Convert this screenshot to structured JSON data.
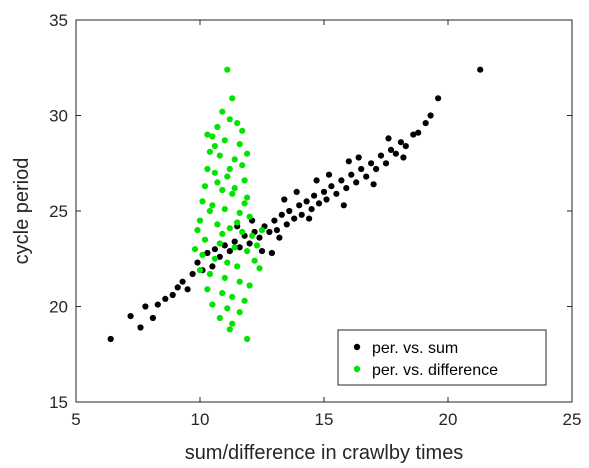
{
  "chart_data": {
    "type": "scatter",
    "xlabel": "sum/difference in crawlby times",
    "ylabel": "cycle period",
    "xlim": [
      5,
      25
    ],
    "ylim": [
      15,
      35
    ],
    "xticks": [
      "5",
      "10",
      "15",
      "20",
      "25"
    ],
    "yticks": [
      "15",
      "20",
      "25",
      "30",
      "35"
    ],
    "grid": false,
    "legend_position": "bottom-right",
    "series": [
      {
        "name": "per. vs. sum",
        "color": "#000000",
        "points": [
          [
            6.4,
            18.3
          ],
          [
            7.2,
            19.5
          ],
          [
            7.6,
            18.9
          ],
          [
            7.8,
            20.0
          ],
          [
            8.1,
            19.4
          ],
          [
            8.3,
            20.1
          ],
          [
            8.6,
            20.4
          ],
          [
            8.9,
            20.6
          ],
          [
            9.1,
            21.0
          ],
          [
            9.3,
            21.3
          ],
          [
            9.5,
            20.9
          ],
          [
            9.7,
            21.7
          ],
          [
            9.9,
            22.3
          ],
          [
            10.1,
            21.9
          ],
          [
            10.3,
            22.8
          ],
          [
            10.5,
            22.1
          ],
          [
            10.6,
            23.0
          ],
          [
            10.8,
            22.6
          ],
          [
            11.0,
            23.2
          ],
          [
            11.2,
            22.9
          ],
          [
            11.4,
            23.4
          ],
          [
            11.6,
            23.1
          ],
          [
            11.8,
            23.7
          ],
          [
            12.0,
            23.3
          ],
          [
            12.2,
            23.9
          ],
          [
            12.4,
            23.6
          ],
          [
            12.6,
            24.2
          ],
          [
            12.8,
            23.9
          ],
          [
            13.0,
            24.5
          ],
          [
            13.1,
            24.0
          ],
          [
            13.3,
            24.8
          ],
          [
            13.5,
            24.3
          ],
          [
            13.6,
            25.0
          ],
          [
            13.8,
            24.6
          ],
          [
            14.0,
            25.3
          ],
          [
            14.1,
            24.8
          ],
          [
            14.3,
            25.5
          ],
          [
            14.5,
            25.1
          ],
          [
            14.6,
            25.8
          ],
          [
            14.8,
            25.4
          ],
          [
            15.0,
            26.0
          ],
          [
            15.1,
            25.6
          ],
          [
            15.3,
            26.3
          ],
          [
            15.5,
            25.9
          ],
          [
            15.7,
            26.6
          ],
          [
            15.9,
            26.2
          ],
          [
            16.1,
            26.9
          ],
          [
            16.3,
            26.5
          ],
          [
            16.5,
            27.2
          ],
          [
            16.7,
            26.8
          ],
          [
            16.9,
            27.5
          ],
          [
            17.1,
            27.2
          ],
          [
            17.3,
            27.9
          ],
          [
            17.5,
            27.5
          ],
          [
            17.7,
            28.2
          ],
          [
            17.9,
            28.0
          ],
          [
            18.1,
            28.6
          ],
          [
            18.3,
            28.4
          ],
          [
            18.6,
            29.0
          ],
          [
            18.8,
            29.1
          ],
          [
            19.1,
            29.6
          ],
          [
            19.3,
            30.0
          ],
          [
            19.6,
            30.9
          ],
          [
            21.3,
            32.4
          ],
          [
            12.1,
            24.5
          ],
          [
            12.5,
            22.9
          ],
          [
            13.2,
            23.6
          ],
          [
            13.9,
            26.0
          ],
          [
            14.4,
            24.6
          ],
          [
            15.2,
            26.9
          ],
          [
            15.8,
            25.3
          ],
          [
            16.4,
            27.8
          ],
          [
            17.0,
            26.4
          ],
          [
            17.6,
            28.8
          ],
          [
            18.2,
            27.8
          ],
          [
            16.0,
            27.6
          ],
          [
            14.7,
            26.6
          ],
          [
            13.4,
            25.6
          ],
          [
            12.9,
            22.8
          ],
          [
            11.5,
            24.2
          ]
        ]
      },
      {
        "name": "per. vs. difference",
        "color": "#00e400",
        "points": [
          [
            11.1,
            32.4
          ],
          [
            11.3,
            30.9
          ],
          [
            10.9,
            30.2
          ],
          [
            11.2,
            29.8
          ],
          [
            10.7,
            29.4
          ],
          [
            11.5,
            29.6
          ],
          [
            10.5,
            28.9
          ],
          [
            11.0,
            28.7
          ],
          [
            11.6,
            28.5
          ],
          [
            10.4,
            28.1
          ],
          [
            10.8,
            27.9
          ],
          [
            11.4,
            27.7
          ],
          [
            11.7,
            27.4
          ],
          [
            10.3,
            27.2
          ],
          [
            10.6,
            27.0
          ],
          [
            11.1,
            26.8
          ],
          [
            11.8,
            26.6
          ],
          [
            10.2,
            26.3
          ],
          [
            10.9,
            26.1
          ],
          [
            11.3,
            25.9
          ],
          [
            11.9,
            25.7
          ],
          [
            10.1,
            25.5
          ],
          [
            10.5,
            25.3
          ],
          [
            11.0,
            25.1
          ],
          [
            11.6,
            24.9
          ],
          [
            12.0,
            24.7
          ],
          [
            10.0,
            24.5
          ],
          [
            10.7,
            24.3
          ],
          [
            11.2,
            24.1
          ],
          [
            11.7,
            23.9
          ],
          [
            12.1,
            23.7
          ],
          [
            10.2,
            23.5
          ],
          [
            10.8,
            23.3
          ],
          [
            11.4,
            23.1
          ],
          [
            11.9,
            22.9
          ],
          [
            10.1,
            22.7
          ],
          [
            10.6,
            22.5
          ],
          [
            11.1,
            22.3
          ],
          [
            11.5,
            22.1
          ],
          [
            12.2,
            22.4
          ],
          [
            10.0,
            21.9
          ],
          [
            10.4,
            21.7
          ],
          [
            11.0,
            21.5
          ],
          [
            11.6,
            21.3
          ],
          [
            12.0,
            21.1
          ],
          [
            10.3,
            20.9
          ],
          [
            10.9,
            20.7
          ],
          [
            11.3,
            20.5
          ],
          [
            11.8,
            20.3
          ],
          [
            10.5,
            20.1
          ],
          [
            11.1,
            19.9
          ],
          [
            11.6,
            19.7
          ],
          [
            10.8,
            19.4
          ],
          [
            11.3,
            19.1
          ],
          [
            11.2,
            18.8
          ],
          [
            11.9,
            18.3
          ],
          [
            10.7,
            26.5
          ],
          [
            11.4,
            26.2
          ],
          [
            10.4,
            25.0
          ],
          [
            11.5,
            24.4
          ],
          [
            10.9,
            23.8
          ],
          [
            11.8,
            25.4
          ],
          [
            12.5,
            24.0
          ],
          [
            12.3,
            23.2
          ],
          [
            9.8,
            23.0
          ],
          [
            9.9,
            24.0
          ],
          [
            12.4,
            22.0
          ],
          [
            11.2,
            27.2
          ],
          [
            10.6,
            28.4
          ],
          [
            11.9,
            28.0
          ],
          [
            10.3,
            29.0
          ],
          [
            11.7,
            29.2
          ]
        ]
      }
    ]
  }
}
